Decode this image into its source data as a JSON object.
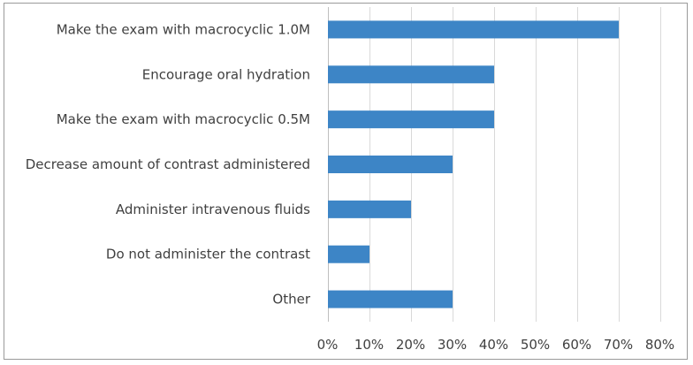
{
  "chart_data": {
    "type": "bar",
    "orientation": "horizontal",
    "title": "",
    "xlabel": "",
    "ylabel": "",
    "categories": [
      "Make the exam with macrocyclic 1.0M",
      "Encourage oral hydration",
      "Make the exam with macrocyclic 0.5M",
      "Decrease amount of contrast administered",
      "Administer intravenous fluids",
      "Do not administer the contrast",
      "Other"
    ],
    "values": [
      70,
      40,
      40,
      30,
      20,
      10,
      30
    ],
    "unit": "%",
    "xlim": [
      0,
      80
    ],
    "x_ticks": [
      "0%",
      "10%",
      "20%",
      "30%",
      "40%",
      "50%",
      "60%",
      "70%",
      "80%"
    ],
    "grid": "vertical",
    "legend": "none",
    "bar_color": "#3d85c6"
  }
}
